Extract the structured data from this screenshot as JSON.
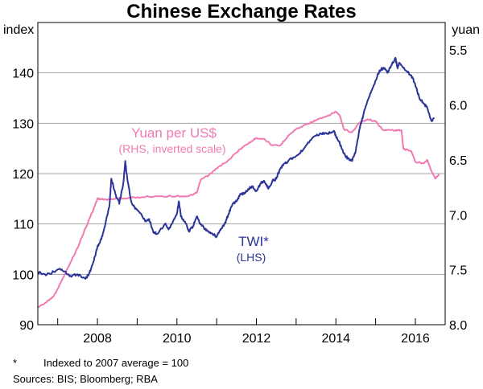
{
  "chart_data": {
    "type": "line",
    "title": "Chinese Exchange Rates",
    "left_axis": {
      "unit": "index",
      "range": [
        90,
        150
      ],
      "ticks": [
        90,
        100,
        110,
        120,
        130,
        140
      ]
    },
    "right_axis": {
      "unit": "yuan",
      "range": [
        8.0,
        5.25
      ],
      "inverted": true,
      "ticks": [
        "5.5",
        "6.0",
        "6.5",
        "7.0",
        "7.5",
        "8.0"
      ],
      "tick_values": [
        5.5,
        6.0,
        6.5,
        7.0,
        7.5,
        8.0
      ]
    },
    "x_axis": {
      "range": [
        2006.5,
        2016.75
      ],
      "ticks": [
        "2008",
        "2010",
        "2012",
        "2014",
        "2016"
      ],
      "tick_positions": [
        2008.0,
        2010.0,
        2012.0,
        2014.0,
        2016.0
      ],
      "year_boundaries": [
        2007,
        2008,
        2009,
        2010,
        2011,
        2012,
        2013,
        2014,
        2015,
        2016
      ]
    },
    "grid": true,
    "series": [
      {
        "name": "Yuan per US$",
        "note": "(RHS, inverted scale)",
        "axis": "right",
        "color": "#f27ab3",
        "points": [
          [
            2006.5,
            7.84
          ],
          [
            2006.7,
            7.8
          ],
          [
            2006.9,
            7.74
          ],
          [
            2007.1,
            7.6
          ],
          [
            2007.3,
            7.45
          ],
          [
            2007.5,
            7.3
          ],
          [
            2007.7,
            7.12
          ],
          [
            2007.9,
            6.95
          ],
          [
            2008.0,
            6.85
          ],
          [
            2008.1,
            6.86
          ],
          [
            2008.3,
            6.86
          ],
          [
            2008.5,
            6.85
          ],
          [
            2008.7,
            6.85
          ],
          [
            2009.0,
            6.84
          ],
          [
            2009.5,
            6.83
          ],
          [
            2010.0,
            6.83
          ],
          [
            2010.3,
            6.83
          ],
          [
            2010.5,
            6.8
          ],
          [
            2010.6,
            6.68
          ],
          [
            2010.8,
            6.64
          ],
          [
            2011.0,
            6.58
          ],
          [
            2011.3,
            6.5
          ],
          [
            2011.6,
            6.4
          ],
          [
            2011.8,
            6.35
          ],
          [
            2012.0,
            6.3
          ],
          [
            2012.2,
            6.31
          ],
          [
            2012.4,
            6.37
          ],
          [
            2012.6,
            6.37
          ],
          [
            2012.8,
            6.28
          ],
          [
            2013.0,
            6.22
          ],
          [
            2013.3,
            6.17
          ],
          [
            2013.5,
            6.14
          ],
          [
            2013.8,
            6.1
          ],
          [
            2014.0,
            6.06
          ],
          [
            2014.1,
            6.1
          ],
          [
            2014.2,
            6.22
          ],
          [
            2014.4,
            6.25
          ],
          [
            2014.6,
            6.16
          ],
          [
            2014.8,
            6.13
          ],
          [
            2015.0,
            6.15
          ],
          [
            2015.2,
            6.23
          ],
          [
            2015.5,
            6.23
          ],
          [
            2015.65,
            6.23
          ],
          [
            2015.7,
            6.4
          ],
          [
            2015.9,
            6.42
          ],
          [
            2016.0,
            6.52
          ],
          [
            2016.2,
            6.53
          ],
          [
            2016.3,
            6.5
          ],
          [
            2016.4,
            6.6
          ],
          [
            2016.5,
            6.67
          ],
          [
            2016.6,
            6.63
          ]
        ]
      },
      {
        "name": "TWI*",
        "note": "(LHS)",
        "axis": "left",
        "color": "#2b3597",
        "points": [
          [
            2006.5,
            100.5
          ],
          [
            2006.7,
            99.8
          ],
          [
            2006.9,
            100.5
          ],
          [
            2007.1,
            101.0
          ],
          [
            2007.3,
            99.6
          ],
          [
            2007.5,
            100.0
          ],
          [
            2007.7,
            99.1
          ],
          [
            2007.8,
            100.3
          ],
          [
            2007.9,
            102.5
          ],
          [
            2008.0,
            105.5
          ],
          [
            2008.1,
            107.0
          ],
          [
            2008.2,
            110.0
          ],
          [
            2008.3,
            113.5
          ],
          [
            2008.35,
            119.0
          ],
          [
            2008.45,
            116.0
          ],
          [
            2008.55,
            114.0
          ],
          [
            2008.65,
            118.0
          ],
          [
            2008.7,
            122.5
          ],
          [
            2008.75,
            119.0
          ],
          [
            2008.85,
            114.5
          ],
          [
            2008.95,
            113.0
          ],
          [
            2009.1,
            112.0
          ],
          [
            2009.2,
            110.5
          ],
          [
            2009.3,
            111.0
          ],
          [
            2009.4,
            108.5
          ],
          [
            2009.5,
            108.0
          ],
          [
            2009.7,
            110.0
          ],
          [
            2009.8,
            109.0
          ],
          [
            2009.9,
            110.5
          ],
          [
            2010.0,
            112.0
          ],
          [
            2010.05,
            114.5
          ],
          [
            2010.1,
            111.5
          ],
          [
            2010.2,
            110.5
          ],
          [
            2010.3,
            108.5
          ],
          [
            2010.4,
            109.5
          ],
          [
            2010.5,
            111.5
          ],
          [
            2010.6,
            110.0
          ],
          [
            2010.7,
            109.0
          ],
          [
            2010.8,
            108.5
          ],
          [
            2010.9,
            108.0
          ],
          [
            2011.0,
            107.5
          ],
          [
            2011.1,
            109.0
          ],
          [
            2011.2,
            110.0
          ],
          [
            2011.3,
            112.0
          ],
          [
            2011.4,
            114.0
          ],
          [
            2011.5,
            114.5
          ],
          [
            2011.6,
            116.0
          ],
          [
            2011.7,
            116.0
          ],
          [
            2011.8,
            117.0
          ],
          [
            2011.9,
            117.5
          ],
          [
            2012.0,
            116.5
          ],
          [
            2012.1,
            118.0
          ],
          [
            2012.2,
            118.5
          ],
          [
            2012.3,
            117.0
          ],
          [
            2012.4,
            118.5
          ],
          [
            2012.5,
            119.0
          ],
          [
            2012.6,
            121.0
          ],
          [
            2012.7,
            122.0
          ],
          [
            2012.8,
            122.5
          ],
          [
            2013.0,
            123.5
          ],
          [
            2013.2,
            125.0
          ],
          [
            2013.4,
            127.0
          ],
          [
            2013.6,
            128.0
          ],
          [
            2013.8,
            128.0
          ],
          [
            2013.95,
            128.5
          ],
          [
            2014.0,
            127.5
          ],
          [
            2014.1,
            126.0
          ],
          [
            2014.2,
            124.0
          ],
          [
            2014.3,
            123.0
          ],
          [
            2014.4,
            122.5
          ],
          [
            2014.5,
            124.5
          ],
          [
            2014.6,
            129.0
          ],
          [
            2014.7,
            132.0
          ],
          [
            2014.8,
            134.5
          ],
          [
            2014.9,
            136.5
          ],
          [
            2015.0,
            138.5
          ],
          [
            2015.1,
            140.5
          ],
          [
            2015.2,
            141.0
          ],
          [
            2015.3,
            140.0
          ],
          [
            2015.4,
            141.5
          ],
          [
            2015.5,
            143.0
          ],
          [
            2015.55,
            141.0
          ],
          [
            2015.6,
            142.0
          ],
          [
            2015.75,
            140.5
          ],
          [
            2015.9,
            139.5
          ],
          [
            2016.0,
            137.5
          ],
          [
            2016.1,
            135.0
          ],
          [
            2016.2,
            134.0
          ],
          [
            2016.3,
            133.0
          ],
          [
            2016.4,
            130.5
          ],
          [
            2016.48,
            131.0
          ]
        ]
      }
    ],
    "footnotes": {
      "marker": "*",
      "indexed": "Indexed to 2007 average = 100",
      "sources": "Sources:  BIS; Bloomberg; RBA"
    }
  }
}
